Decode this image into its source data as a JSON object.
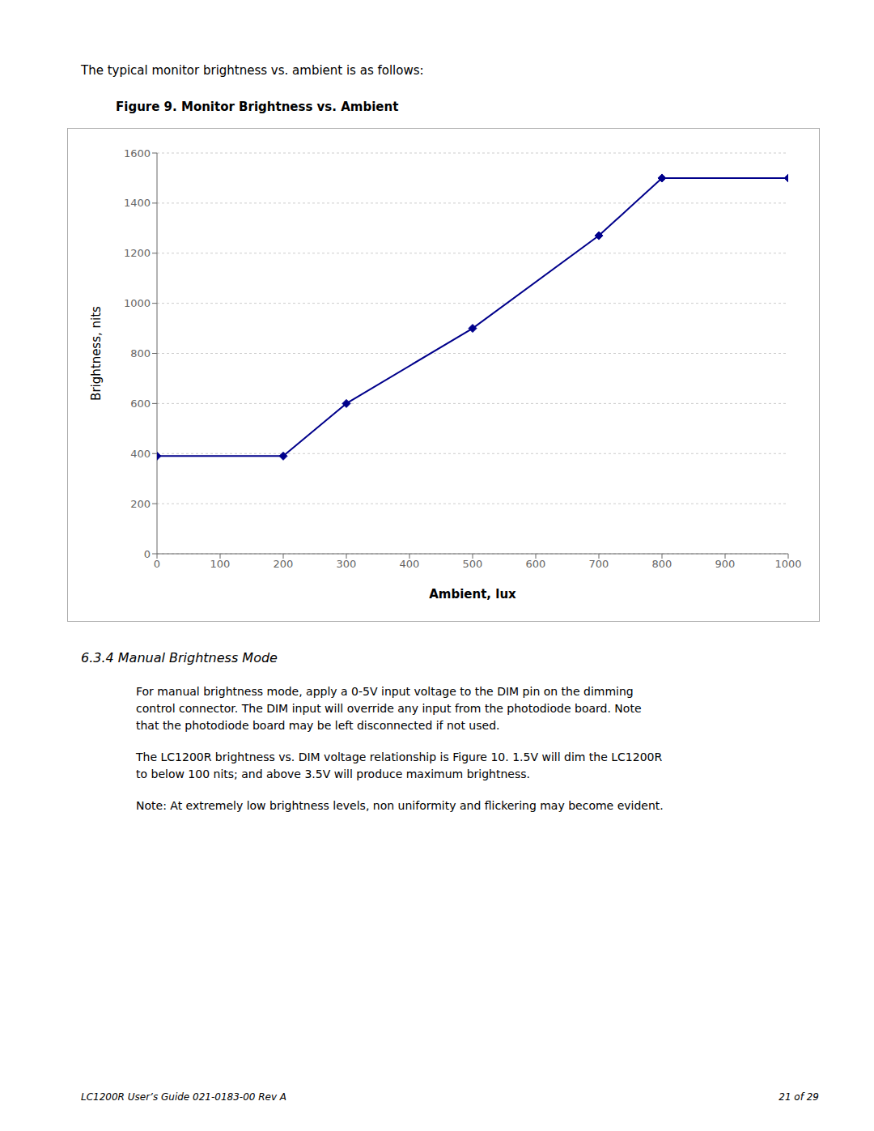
{
  "chart_data": {
    "type": "line",
    "title": "Figure 9.  Monitor Brightness vs. Ambient",
    "annotations": [
      "The typical monitor brightness vs. ambient is as follows:",
      "6.3.4 Manual Brightness Mode",
      "For manual brightness mode, apply a 0-5V input voltage to the DIM pin on the dimming\ncontrol connector.  The DIM input will override any input from the photodiode board.  Note\nthat the photodiode board may be left disconnected if not used.",
      "The LC1200R brightness vs. DIM voltage relationship is Figure 10.  1.5V will dim the LC1200R\nto below 100 nits; and above 3.5V will produce maximum brightness.",
      "Note: At extremely low brightness levels, non uniformity and flickering may become evident.",
      "LC1200R User’s Guide   021-0183-00 Rev A",
      "21 of 29"
    ],
    "x": [
      0,
      200,
      300,
      500,
      700,
      800,
      1000
    ],
    "values": [
      390,
      390,
      600,
      900,
      1270,
      1500,
      1500
    ],
    "xlabel": "Ambient, lux",
    "ylabel": "Brightness, nits",
    "xlim": [
      0,
      1000
    ],
    "ylim": [
      0,
      1600
    ],
    "xticks": [
      0,
      100,
      200,
      300,
      400,
      500,
      600,
      700,
      800,
      900,
      1000
    ],
    "yticks": [
      0,
      200,
      400,
      600,
      800,
      1000,
      1200,
      1400,
      1600
    ],
    "color": "#00008B",
    "marker": "diamond",
    "grid": true
  }
}
